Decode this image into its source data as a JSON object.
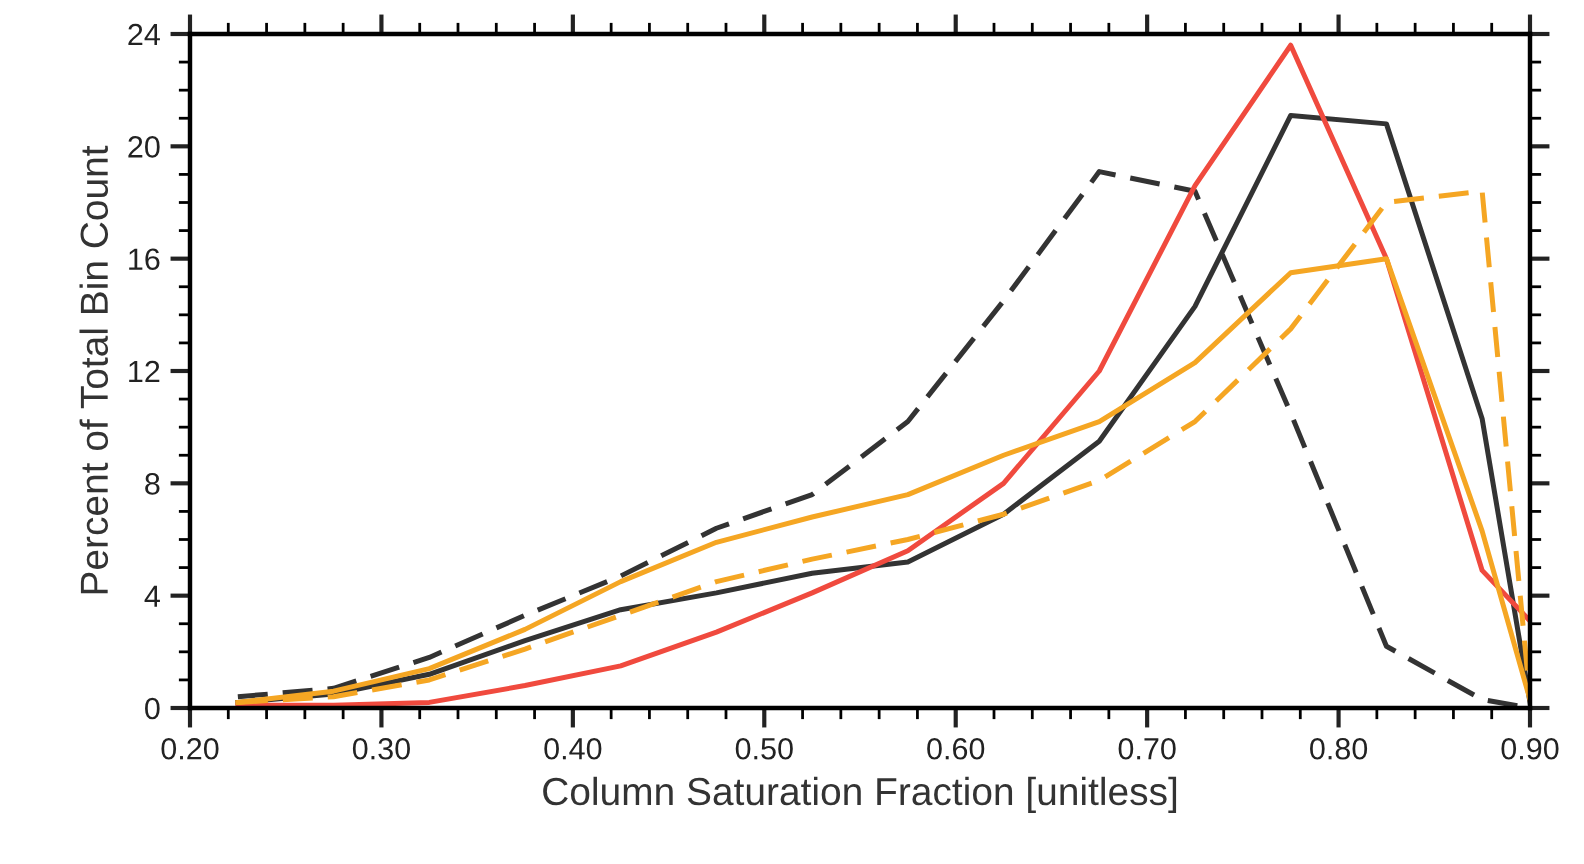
{
  "chart_data": {
    "type": "line",
    "xlabel": "Column Saturation Fraction [unitless]",
    "ylabel": "Percent of Total Bin Count",
    "x": [
      0.225,
      0.275,
      0.325,
      0.375,
      0.425,
      0.475,
      0.525,
      0.575,
      0.625,
      0.675,
      0.725,
      0.775,
      0.825,
      0.875,
      0.9
    ],
    "series": [
      {
        "color": "#333333",
        "line_style": "dashed",
        "values": [
          0.4,
          0.7,
          1.8,
          3.3,
          4.7,
          6.4,
          7.6,
          10.2,
          14.5,
          19.1,
          18.4,
          10.5,
          2.2,
          0.3,
          0
        ]
      },
      {
        "color": "#333333",
        "line_style": "solid",
        "values": [
          0.2,
          0.5,
          1.2,
          2.4,
          3.5,
          4.1,
          4.8,
          5.2,
          6.9,
          9.5,
          14.3,
          21.1,
          20.8,
          10.3,
          0.2
        ]
      },
      {
        "color": "#f04a3e",
        "line_style": "solid",
        "values": [
          0.1,
          0.1,
          0.2,
          0.8,
          1.5,
          2.7,
          4.1,
          5.6,
          8.0,
          12.0,
          18.6,
          23.6,
          16.0,
          4.9,
          3.1
        ]
      },
      {
        "color": "#f5a623",
        "line_style": "solid",
        "values": [
          0.2,
          0.6,
          1.4,
          2.8,
          4.5,
          5.9,
          6.8,
          7.6,
          9.0,
          10.2,
          12.3,
          15.5,
          16.0,
          6.3,
          0.3
        ]
      },
      {
        "color": "#f5a623",
        "line_style": "dashed",
        "values": [
          0.2,
          0.4,
          1.0,
          2.1,
          3.3,
          4.5,
          5.3,
          6.0,
          6.9,
          8.1,
          10.2,
          13.5,
          18.0,
          18.4,
          0.3
        ]
      }
    ],
    "xlim": [
      0.2,
      0.9
    ],
    "xticks": [
      {
        "value": 0.2,
        "label": "0.20"
      },
      {
        "value": 0.3,
        "label": "0.30"
      },
      {
        "value": 0.4,
        "label": "0.40"
      },
      {
        "value": 0.5,
        "label": "0.50"
      },
      {
        "value": 0.6,
        "label": "0.60"
      },
      {
        "value": 0.7,
        "label": "0.70"
      },
      {
        "value": 0.8,
        "label": "0.80"
      },
      {
        "value": 0.9,
        "label": "0.90"
      }
    ],
    "ylim": [
      0,
      24
    ],
    "yticks": [
      0,
      4,
      8,
      12,
      16,
      20,
      24
    ],
    "grid": false,
    "legend": false
  }
}
